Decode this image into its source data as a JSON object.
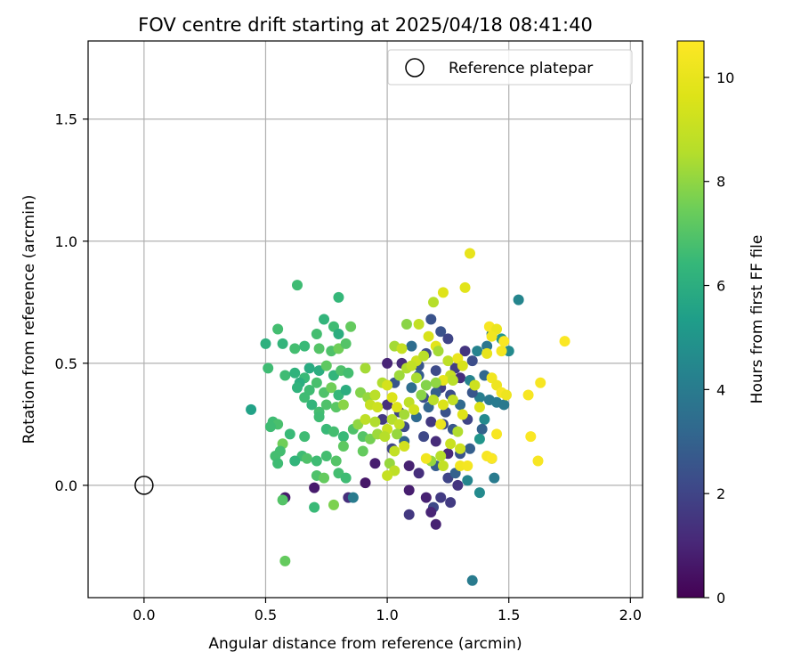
{
  "chart_data": {
    "type": "scatter",
    "title": "FOV centre drift starting at 2025/04/18 08:41:40",
    "xlabel": "Angular distance from reference (arcmin)",
    "ylabel": "Rotation from reference (arcmin)",
    "xlim": [
      -0.23,
      2.05
    ],
    "ylim": [
      -0.46,
      1.82
    ],
    "xticks": [
      0.0,
      0.5,
      1.0,
      1.5,
      2.0
    ],
    "xtick_labels": [
      "0.0",
      "0.5",
      "1.0",
      "1.5",
      "2.0"
    ],
    "yticks": [
      0.0,
      0.5,
      1.0,
      1.5
    ],
    "ytick_labels": [
      "0.0",
      "0.5",
      "1.0",
      "1.5"
    ],
    "grid": true,
    "legend": {
      "placement": "top-right",
      "label": "Reference platepar",
      "marker": "open-circle"
    },
    "reference_point": {
      "x": 0.0,
      "y": 0.0
    },
    "colorbar": {
      "label": "Hours from first FF file",
      "range": [
        0,
        10.7
      ],
      "ticks": [
        0,
        2,
        4,
        6,
        8,
        10
      ],
      "tick_labels": [
        "0",
        "2",
        "4",
        "6",
        "8",
        "10"
      ],
      "colormap": "viridis"
    },
    "points": [
      [
        1.18,
        0.68,
        2.5
      ],
      [
        1.22,
        0.63,
        2.5
      ],
      [
        1.25,
        0.6,
        2.0
      ],
      [
        1.16,
        0.54,
        2.2
      ],
      [
        1.1,
        0.57,
        3.4
      ],
      [
        1.06,
        0.5,
        1.2
      ],
      [
        1.0,
        0.5,
        1.0
      ],
      [
        1.13,
        0.49,
        2.6
      ],
      [
        1.2,
        0.47,
        2.2
      ],
      [
        1.28,
        0.48,
        1.8
      ],
      [
        1.32,
        0.55,
        1.5
      ],
      [
        1.35,
        0.51,
        2.3
      ],
      [
        1.4,
        0.45,
        3.2
      ],
      [
        1.41,
        0.57,
        3.8
      ],
      [
        1.43,
        0.62,
        4.0
      ],
      [
        1.47,
        0.6,
        5.0
      ],
      [
        1.5,
        0.55,
        4.6
      ],
      [
        1.54,
        0.76,
        4.4
      ],
      [
        1.37,
        0.55,
        4.3
      ],
      [
        1.1,
        0.4,
        3.4
      ],
      [
        1.03,
        0.42,
        2.6
      ],
      [
        1.15,
        0.36,
        2.3
      ],
      [
        1.22,
        0.4,
        1.8
      ],
      [
        1.26,
        0.37,
        2.3
      ],
      [
        1.3,
        0.44,
        1.3
      ],
      [
        1.34,
        0.43,
        4.3
      ],
      [
        1.38,
        0.36,
        4.1
      ],
      [
        1.42,
        0.35,
        3.9
      ],
      [
        1.45,
        0.34,
        4.0
      ],
      [
        1.48,
        0.33,
        3.9
      ],
      [
        1.0,
        0.33,
        1.3
      ],
      [
        1.05,
        0.3,
        2.0
      ],
      [
        1.12,
        0.28,
        3.3
      ],
      [
        1.18,
        0.26,
        1.6
      ],
      [
        1.23,
        0.25,
        2.2
      ],
      [
        1.27,
        0.23,
        2.6
      ],
      [
        1.33,
        0.27,
        2.0
      ],
      [
        1.4,
        0.27,
        4.6
      ],
      [
        1.39,
        0.23,
        3.0
      ],
      [
        1.15,
        0.2,
        2.1
      ],
      [
        1.2,
        0.18,
        1.2
      ],
      [
        1.07,
        0.18,
        3.1
      ],
      [
        1.02,
        0.15,
        2.0
      ],
      [
        1.25,
        0.13,
        1.1
      ],
      [
        1.3,
        0.13,
        2.5
      ],
      [
        1.34,
        0.15,
        2.9
      ],
      [
        1.38,
        0.19,
        5.0
      ],
      [
        1.43,
        0.11,
        3.8
      ],
      [
        1.44,
        0.03,
        4.0
      ],
      [
        1.09,
        0.08,
        0.9
      ],
      [
        1.13,
        0.05,
        1.3
      ],
      [
        1.2,
        0.08,
        2.8
      ],
      [
        1.25,
        0.03,
        2.0
      ],
      [
        1.29,
        0.0,
        1.5
      ],
      [
        1.33,
        0.02,
        4.4
      ],
      [
        1.38,
        -0.03,
        4.6
      ],
      [
        1.09,
        -0.02,
        0.8
      ],
      [
        1.16,
        -0.05,
        0.9
      ],
      [
        1.22,
        -0.05,
        1.7
      ],
      [
        1.26,
        -0.07,
        1.7
      ],
      [
        1.19,
        -0.09,
        2.1
      ],
      [
        1.18,
        -0.11,
        1.0
      ],
      [
        1.09,
        -0.12,
        1.6
      ],
      [
        1.2,
        -0.16,
        0.9
      ],
      [
        0.95,
        0.09,
        0.8
      ],
      [
        0.91,
        0.01,
        0.6
      ],
      [
        0.84,
        -0.05,
        1.3
      ],
      [
        0.86,
        -0.05,
        4.0
      ],
      [
        0.7,
        -0.01,
        0.7
      ],
      [
        0.58,
        -0.05,
        0.7
      ],
      [
        1.35,
        -0.39,
        4.0
      ],
      [
        1.13,
        0.45,
        2.8
      ],
      [
        1.2,
        0.38,
        2.9
      ],
      [
        1.3,
        0.33,
        3.3
      ],
      [
        1.17,
        0.32,
        3.1
      ],
      [
        1.24,
        0.3,
        2.5
      ],
      [
        0.98,
        0.27,
        1.6
      ],
      [
        1.07,
        0.24,
        2.2
      ],
      [
        1.35,
        0.38,
        2.6
      ],
      [
        1.28,
        0.05,
        3.0
      ],
      [
        0.63,
        0.82,
        6.6
      ],
      [
        0.8,
        0.77,
        6.4
      ],
      [
        0.74,
        0.68,
        6.3
      ],
      [
        0.78,
        0.65,
        6.6
      ],
      [
        0.8,
        0.62,
        6.0
      ],
      [
        0.85,
        0.65,
        7.3
      ],
      [
        0.55,
        0.64,
        6.7
      ],
      [
        0.5,
        0.58,
        6.1
      ],
      [
        0.57,
        0.58,
        6.3
      ],
      [
        0.62,
        0.56,
        6.7
      ],
      [
        0.66,
        0.57,
        6.5
      ],
      [
        0.72,
        0.56,
        7.0
      ],
      [
        0.77,
        0.55,
        6.9
      ],
      [
        0.8,
        0.56,
        7.5
      ],
      [
        0.71,
        0.62,
        6.7
      ],
      [
        0.83,
        0.58,
        7.0
      ],
      [
        0.51,
        0.48,
        6.6
      ],
      [
        0.58,
        0.45,
        6.6
      ],
      [
        0.62,
        0.46,
        6.2
      ],
      [
        0.66,
        0.44,
        6.5
      ],
      [
        0.68,
        0.48,
        5.9
      ],
      [
        0.72,
        0.47,
        6.0
      ],
      [
        0.75,
        0.49,
        7.2
      ],
      [
        0.78,
        0.45,
        6.3
      ],
      [
        0.81,
        0.47,
        6.9
      ],
      [
        0.84,
        0.46,
        6.7
      ],
      [
        0.64,
        0.42,
        6.0
      ],
      [
        0.68,
        0.39,
        6.6
      ],
      [
        0.71,
        0.42,
        6.8
      ],
      [
        0.74,
        0.38,
        6.9
      ],
      [
        0.77,
        0.4,
        7.5
      ],
      [
        0.8,
        0.37,
        6.4
      ],
      [
        0.83,
        0.39,
        6.0
      ],
      [
        0.63,
        0.4,
        6.2
      ],
      [
        0.66,
        0.36,
        6.6
      ],
      [
        0.69,
        0.33,
        6.3
      ],
      [
        0.72,
        0.3,
        6.7
      ],
      [
        0.75,
        0.33,
        6.9
      ],
      [
        0.79,
        0.32,
        7.1
      ],
      [
        0.82,
        0.33,
        7.9
      ],
      [
        0.44,
        0.31,
        5.5
      ],
      [
        0.53,
        0.26,
        6.6
      ],
      [
        0.55,
        0.25,
        6.8
      ],
      [
        0.52,
        0.24,
        6.6
      ],
      [
        0.6,
        0.21,
        6.5
      ],
      [
        0.66,
        0.2,
        6.6
      ],
      [
        0.72,
        0.28,
        6.6
      ],
      [
        0.75,
        0.23,
        6.5
      ],
      [
        0.78,
        0.22,
        6.7
      ],
      [
        0.82,
        0.2,
        6.5
      ],
      [
        0.86,
        0.23,
        6.9
      ],
      [
        0.88,
        0.25,
        8.0
      ],
      [
        0.9,
        0.2,
        7.0
      ],
      [
        0.93,
        0.19,
        7.6
      ],
      [
        0.96,
        0.21,
        8.2
      ],
      [
        0.57,
        0.17,
        7.5
      ],
      [
        0.56,
        0.14,
        6.7
      ],
      [
        0.54,
        0.12,
        6.7
      ],
      [
        0.65,
        0.12,
        6.6
      ],
      [
        0.67,
        0.11,
        6.9
      ],
      [
        0.71,
        0.1,
        6.6
      ],
      [
        0.75,
        0.12,
        6.7
      ],
      [
        0.79,
        0.1,
        7.0
      ],
      [
        0.82,
        0.16,
        7.2
      ],
      [
        0.9,
        0.14,
        7.3
      ],
      [
        0.55,
        0.09,
        6.6
      ],
      [
        0.62,
        0.1,
        6.3
      ],
      [
        0.71,
        0.04,
        6.9
      ],
      [
        0.74,
        0.03,
        7.3
      ],
      [
        0.8,
        0.05,
        6.7
      ],
      [
        0.83,
        0.03,
        6.6
      ],
      [
        0.57,
        -0.06,
        7.0
      ],
      [
        0.7,
        -0.09,
        6.5
      ],
      [
        0.78,
        -0.08,
        7.7
      ],
      [
        0.58,
        -0.31,
        7.3
      ],
      [
        0.89,
        0.38,
        7.8
      ],
      [
        0.92,
        0.36,
        8.1
      ],
      [
        0.95,
        0.37,
        8.7
      ],
      [
        0.98,
        0.42,
        8.5
      ],
      [
        1.0,
        0.41,
        9.4
      ],
      [
        0.91,
        0.48,
        8.3
      ],
      [
        0.93,
        0.33,
        9.0
      ],
      [
        0.96,
        0.32,
        9.2
      ],
      [
        0.91,
        0.27,
        8.8
      ],
      [
        0.95,
        0.26,
        8.5
      ],
      [
        1.02,
        0.36,
        9.6
      ],
      [
        1.05,
        0.45,
        8.2
      ],
      [
        1.03,
        0.57,
        8.3
      ],
      [
        1.06,
        0.56,
        9.0
      ],
      [
        1.08,
        0.48,
        8.5
      ],
      [
        1.12,
        0.51,
        9.2
      ],
      [
        1.15,
        0.53,
        8.7
      ],
      [
        1.17,
        0.61,
        9.5
      ],
      [
        1.2,
        0.57,
        9.8
      ],
      [
        1.13,
        0.66,
        8.9
      ],
      [
        1.08,
        0.66,
        7.9
      ],
      [
        1.19,
        0.75,
        8.6
      ],
      [
        1.23,
        0.79,
        9.7
      ],
      [
        1.32,
        0.81,
        9.8
      ],
      [
        1.34,
        0.95,
        10.0
      ],
      [
        1.21,
        0.55,
        8.3
      ],
      [
        1.25,
        0.51,
        8.8
      ],
      [
        1.29,
        0.52,
        10.1
      ],
      [
        1.31,
        0.49,
        9.5
      ],
      [
        1.26,
        0.45,
        9.0
      ],
      [
        1.23,
        0.43,
        9.9
      ],
      [
        1.2,
        0.42,
        8.0
      ],
      [
        1.1,
        0.49,
        8.9
      ],
      [
        1.12,
        0.44,
        8.4
      ],
      [
        1.16,
        0.41,
        7.8
      ],
      [
        1.09,
        0.34,
        8.8
      ],
      [
        1.14,
        0.37,
        7.9
      ],
      [
        1.11,
        0.31,
        9.3
      ],
      [
        1.04,
        0.32,
        9.6
      ],
      [
        1.07,
        0.29,
        8.3
      ],
      [
        1.02,
        0.27,
        8.6
      ],
      [
        1.05,
        0.25,
        8.9
      ],
      [
        1.0,
        0.23,
        9.1
      ],
      [
        1.04,
        0.21,
        8.1
      ],
      [
        0.99,
        0.2,
        8.6
      ],
      [
        1.03,
        0.14,
        8.9
      ],
      [
        1.07,
        0.16,
        9.3
      ],
      [
        1.01,
        0.09,
        8.1
      ],
      [
        1.03,
        0.06,
        8.8
      ],
      [
        1.0,
        0.04,
        9.0
      ],
      [
        1.19,
        0.35,
        8.7
      ],
      [
        1.23,
        0.33,
        9.6
      ],
      [
        1.27,
        0.35,
        8.9
      ],
      [
        1.31,
        0.29,
        9.7
      ],
      [
        1.29,
        0.22,
        8.5
      ],
      [
        1.26,
        0.17,
        9.1
      ],
      [
        1.3,
        0.15,
        9.2
      ],
      [
        1.22,
        0.12,
        8.6
      ],
      [
        1.18,
        0.1,
        8.1
      ],
      [
        1.23,
        0.08,
        8.9
      ],
      [
        1.3,
        0.08,
        10.3
      ],
      [
        1.33,
        0.08,
        10.4
      ],
      [
        1.41,
        0.12,
        10.5
      ],
      [
        1.43,
        0.11,
        10.6
      ],
      [
        1.45,
        0.21,
        10.5
      ],
      [
        1.43,
        0.44,
        10.3
      ],
      [
        1.45,
        0.41,
        10.2
      ],
      [
        1.47,
        0.38,
        10.5
      ],
      [
        1.49,
        0.37,
        10.2
      ],
      [
        1.42,
        0.65,
        10.5
      ],
      [
        1.45,
        0.64,
        10.1
      ],
      [
        1.43,
        0.61,
        10.3
      ],
      [
        1.48,
        0.59,
        10.6
      ],
      [
        1.47,
        0.55,
        10.4
      ],
      [
        1.41,
        0.54,
        10.0
      ],
      [
        1.58,
        0.37,
        10.5
      ],
      [
        1.59,
        0.2,
        10.6
      ],
      [
        1.63,
        0.42,
        10.5
      ],
      [
        1.62,
        0.1,
        10.5
      ],
      [
        1.73,
        0.59,
        10.6
      ],
      [
        1.22,
        0.25,
        10.1
      ],
      [
        1.16,
        0.11,
        10.3
      ],
      [
        1.38,
        0.32,
        9.6
      ],
      [
        1.36,
        0.41,
        9.2
      ],
      [
        1.27,
        0.43,
        8.7
      ]
    ]
  }
}
